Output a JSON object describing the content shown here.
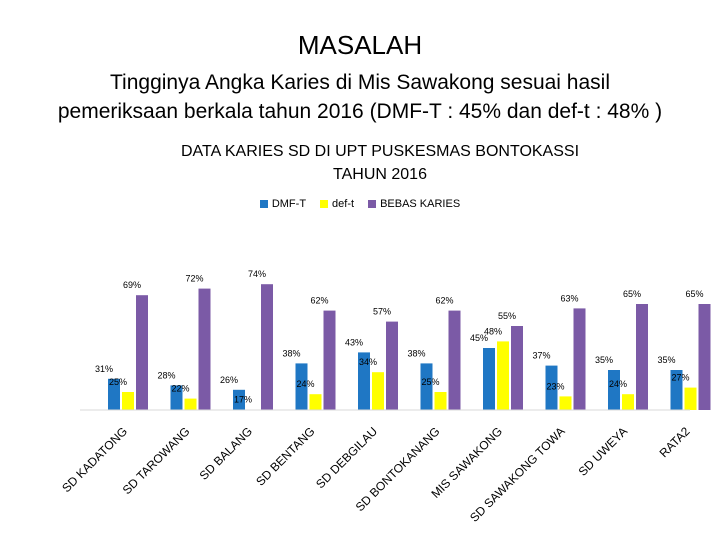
{
  "slide": {
    "title": "MASALAH",
    "subtitle_line1": "Tingginya Angka Karies di Mis Sawakong sesuai hasil",
    "subtitle_line2": "pemeriksaan berkala tahun 2016 (DMF-T : 45% dan def-t : 48% )"
  },
  "chart_data": {
    "type": "bar",
    "title_line1": "DATA KARIES SD DI UPT PUSKESMAS BONTOKASSI",
    "title_line2": "TAHUN 2016",
    "categories": [
      "SD KADATONG",
      "SD TAROWANG",
      "SD BALANG",
      "SD BENTANG",
      "SD DEBGILAU",
      "SD BONTOKANANG",
      "MIS SAWAKONG",
      "SD SAWAKONG TOWA",
      "SD UWEYA",
      "RATA2"
    ],
    "series": [
      {
        "name": "DMF-T",
        "color": "#1f77c4",
        "values": [
          31,
          28,
          26,
          38,
          43,
          38,
          45,
          37,
          35,
          35
        ],
        "labels": [
          "31%",
          "28%",
          "26%",
          "38%",
          "43%",
          "38%",
          "45%",
          "37%",
          "35%",
          "35%"
        ]
      },
      {
        "name": "def-t",
        "color": "#ffff00",
        "values": [
          25,
          22,
          17,
          24,
          34,
          25,
          48,
          23,
          24,
          27
        ],
        "labels": [
          "25%",
          "22%",
          "17%",
          "24%",
          "34%",
          "25%",
          "48%",
          "23%",
          "24%",
          "27%"
        ]
      },
      {
        "name": "BEBAS KARIES",
        "color": "#7b5aa6",
        "values": [
          69,
          72,
          74,
          62,
          57,
          62,
          55,
          63,
          65,
          65
        ],
        "labels": [
          "69%",
          "72%",
          "74%",
          "62%",
          "57%",
          "62%",
          "55%",
          "63%",
          "65%",
          "65%"
        ]
      }
    ],
    "legend_position": "top",
    "grid": false
  }
}
